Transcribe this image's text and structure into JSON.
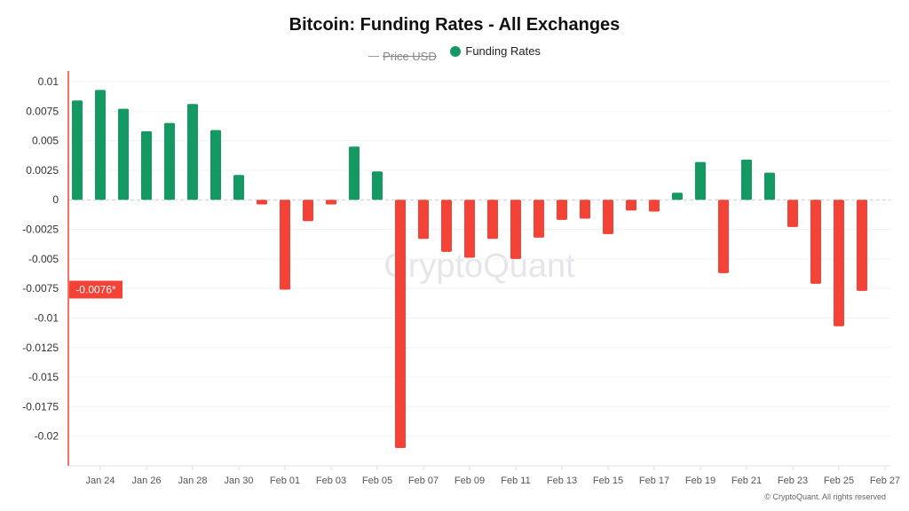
{
  "chart_data": {
    "type": "bar",
    "title": "Bitcoin: Funding Rates - All Exchanges",
    "legend": [
      {
        "name": "Price USD",
        "hidden": true,
        "color": "#999999"
      },
      {
        "name": "Funding Rates",
        "hidden": false,
        "color": "#149962"
      }
    ],
    "categories": [
      "Jan 23",
      "Jan 24",
      "Jan 25",
      "Jan 26",
      "Jan 27",
      "Jan 28",
      "Jan 29",
      "Jan 30",
      "Jan 31",
      "Feb 01",
      "Feb 02",
      "Feb 03",
      "Feb 04",
      "Feb 05",
      "Feb 06",
      "Feb 07",
      "Feb 08",
      "Feb 09",
      "Feb 10",
      "Feb 11",
      "Feb 12",
      "Feb 13",
      "Feb 14",
      "Feb 15",
      "Feb 16",
      "Feb 17",
      "Feb 18",
      "Feb 19",
      "Feb 20",
      "Feb 21",
      "Feb 22",
      "Feb 23",
      "Feb 24",
      "Feb 25",
      "Feb 26"
    ],
    "series": [
      {
        "name": "Funding Rates",
        "values": [
          0.0084,
          0.0093,
          0.0077,
          0.0058,
          0.0065,
          0.0081,
          0.0059,
          0.0021,
          -0.0004,
          -0.0076,
          -0.0018,
          -0.0004,
          0.0045,
          0.0024,
          -0.021,
          -0.0033,
          -0.0044,
          -0.0049,
          -0.0033,
          -0.005,
          -0.0032,
          -0.0017,
          -0.0016,
          -0.0029,
          -0.0009,
          -0.001,
          0.0006,
          0.0032,
          -0.0062,
          0.0034,
          0.0023,
          -0.0023,
          -0.0071,
          -0.0107,
          -0.0077
        ]
      }
    ],
    "positive_color": "#149962",
    "negative_color": "#f44336",
    "y_ticks": [
      "0.01",
      "0.0075",
      "0.005",
      "0.0025",
      "0",
      "-0.0025",
      "-0.005",
      "-0.0075",
      "-0.01",
      "-0.0125",
      "-0.015",
      "-0.0175",
      "-0.02"
    ],
    "x_ticks": [
      "Jan 24",
      "Jan 26",
      "Jan 28",
      "Jan 30",
      "Feb 01",
      "Feb 03",
      "Feb 05",
      "Feb 07",
      "Feb 09",
      "Feb 11",
      "Feb 13",
      "Feb 15",
      "Feb 17",
      "Feb 19",
      "Feb 21",
      "Feb 23",
      "Feb 25",
      "Feb 27"
    ],
    "ylim": [
      -0.0225,
      0.0109
    ],
    "crosshair_label": "-0.0076*",
    "grid": true,
    "legend_position": "top-center"
  },
  "watermark": "CryptoQuant",
  "copyright": "© CryptoQuant. All rights reserved"
}
